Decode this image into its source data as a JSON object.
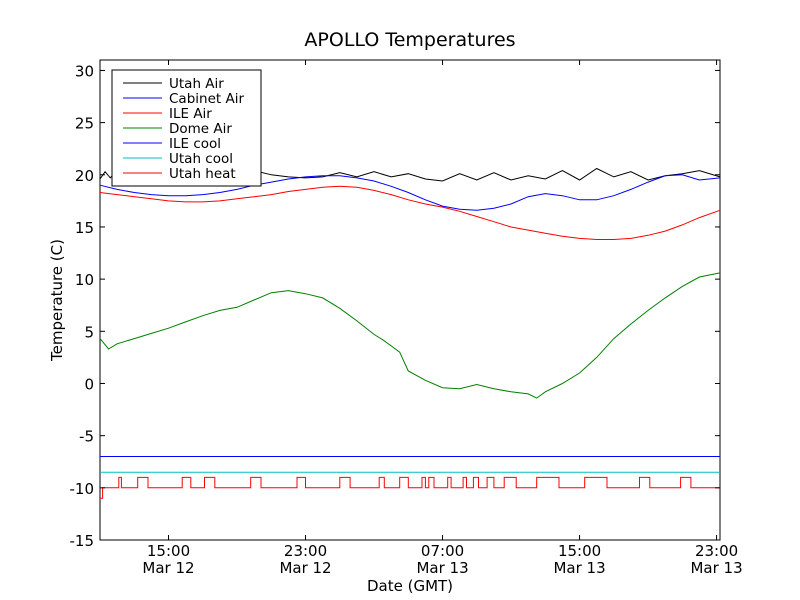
{
  "chart_data": {
    "type": "line",
    "title": "APOLLO Temperatures",
    "xlabel": "Date (GMT)",
    "ylabel": "Temperature (C)",
    "xlim": [
      11.0,
      47.2
    ],
    "ylim": [
      -15,
      31
    ],
    "yticks": [
      -15,
      -10,
      -5,
      0,
      5,
      10,
      15,
      20,
      25,
      30
    ],
    "ytick_labels": [
      "-15",
      "-10",
      "-5",
      "0",
      "5",
      "10",
      "15",
      "20",
      "25",
      "30"
    ],
    "xticks": [
      {
        "x": 15,
        "time": "15:00",
        "date": "Mar 12"
      },
      {
        "x": 23,
        "time": "23:00",
        "date": "Mar 12"
      },
      {
        "x": 31,
        "time": "07:00",
        "date": "Mar 13"
      },
      {
        "x": 39,
        "time": "15:00",
        "date": "Mar 13"
      },
      {
        "x": 47,
        "time": "23:00",
        "date": "Mar 13"
      }
    ],
    "grid": false,
    "legend_position": "upper-left",
    "series": [
      {
        "name": "Utah Air",
        "color": "#000000",
        "x": [
          11.0,
          11.3,
          11.6,
          12.0,
          12.5,
          13.0,
          13.5,
          14.0,
          15.0,
          16.0,
          17.0,
          18.0,
          19.0,
          20.0,
          21.0,
          22.0,
          23.0,
          24.0,
          25.0,
          26.0,
          27.0,
          28.0,
          29.0,
          30.0,
          31.0,
          32.0,
          33.0,
          34.0,
          35.0,
          36.0,
          37.0,
          38.0,
          39.0,
          40.0,
          41.0,
          42.0,
          43.0,
          44.0,
          45.0,
          46.0,
          47.2
        ],
        "y": [
          19.6,
          20.3,
          19.7,
          20.5,
          19.8,
          20.2,
          19.9,
          20.4,
          19.8,
          20.3,
          19.9,
          20.2,
          19.8,
          20.4,
          20.0,
          19.8,
          19.7,
          19.8,
          20.2,
          19.8,
          20.3,
          19.8,
          20.1,
          19.6,
          19.4,
          20.1,
          19.5,
          20.2,
          19.5,
          19.9,
          19.6,
          20.4,
          19.5,
          20.6,
          19.8,
          20.3,
          19.5,
          19.9,
          20.1,
          20.4,
          19.8
        ]
      },
      {
        "name": "Cabinet Air",
        "color": "#0000ff",
        "x": [
          11.0,
          12.0,
          13.0,
          14.0,
          15.0,
          16.0,
          17.0,
          18.0,
          19.0,
          20.0,
          21.0,
          22.0,
          23.0,
          24.0,
          25.0,
          26.0,
          27.0,
          28.0,
          29.0,
          30.0,
          31.0,
          32.0,
          33.0,
          34.0,
          35.0,
          36.0,
          37.0,
          38.0,
          39.0,
          40.0,
          41.0,
          42.0,
          43.0,
          44.0,
          45.0,
          46.0,
          47.2
        ],
        "y": [
          19.0,
          18.6,
          18.3,
          18.1,
          18.0,
          18.0,
          18.1,
          18.3,
          18.6,
          19.0,
          19.3,
          19.6,
          19.8,
          19.9,
          19.9,
          19.7,
          19.4,
          18.9,
          18.3,
          17.6,
          17.0,
          16.7,
          16.6,
          16.8,
          17.2,
          17.9,
          18.2,
          18.0,
          17.6,
          17.6,
          18.0,
          18.6,
          19.3,
          19.9,
          20.0,
          19.5,
          19.7
        ]
      },
      {
        "name": "ILE Air",
        "color": "#ff0000",
        "x": [
          11.0,
          12.0,
          13.0,
          14.0,
          15.0,
          16.0,
          17.0,
          18.0,
          19.0,
          20.0,
          21.0,
          22.0,
          23.0,
          24.0,
          25.0,
          26.0,
          27.0,
          28.0,
          29.0,
          30.0,
          31.0,
          32.0,
          33.0,
          34.0,
          35.0,
          36.0,
          37.0,
          38.0,
          39.0,
          40.0,
          41.0,
          42.0,
          43.0,
          44.0,
          45.0,
          46.0,
          47.2
        ],
        "y": [
          18.3,
          18.1,
          17.9,
          17.7,
          17.5,
          17.4,
          17.4,
          17.5,
          17.7,
          17.9,
          18.1,
          18.4,
          18.6,
          18.8,
          18.9,
          18.8,
          18.5,
          18.1,
          17.6,
          17.2,
          16.9,
          16.5,
          16.0,
          15.5,
          15.0,
          14.7,
          14.4,
          14.1,
          13.9,
          13.8,
          13.8,
          13.9,
          14.2,
          14.6,
          15.2,
          15.9,
          16.6
        ]
      },
      {
        "name": "Dome Air",
        "color": "#008000",
        "x": [
          11.0,
          11.5,
          12.0,
          13.0,
          14.0,
          15.0,
          16.0,
          17.0,
          18.0,
          19.0,
          20.0,
          21.0,
          22.0,
          23.0,
          24.0,
          25.0,
          26.0,
          27.0,
          27.5,
          28.0,
          28.5,
          29.0,
          30.0,
          31.0,
          32.0,
          33.0,
          34.0,
          35.0,
          36.0,
          36.5,
          37.0,
          38.0,
          39.0,
          40.0,
          41.0,
          42.0,
          43.0,
          44.0,
          45.0,
          46.0,
          47.2
        ],
        "y": [
          4.3,
          3.3,
          3.8,
          4.3,
          4.8,
          5.3,
          5.9,
          6.5,
          7.0,
          7.3,
          8.0,
          8.7,
          8.9,
          8.6,
          8.2,
          7.2,
          6.0,
          4.7,
          4.2,
          3.6,
          3.0,
          1.2,
          0.3,
          -0.4,
          -0.5,
          -0.1,
          -0.5,
          -0.8,
          -1.0,
          -1.4,
          -0.8,
          0.0,
          1.0,
          2.5,
          4.3,
          5.7,
          7.0,
          8.2,
          9.3,
          10.2,
          10.6
        ]
      },
      {
        "name": "ILE cool",
        "color": "#0000ff",
        "x": [
          11.0,
          47.2
        ],
        "y": [
          -7.0,
          -7.0
        ]
      },
      {
        "name": "Utah cool",
        "color": "#00bfbf",
        "x": [
          11.0,
          47.2
        ],
        "y": [
          -8.5,
          -8.5
        ]
      },
      {
        "name": "Utah heat",
        "color": "#ff0000",
        "x": [
          11.0,
          11.15,
          11.15,
          12.1,
          12.1,
          12.25,
          12.25,
          13.2,
          13.2,
          13.8,
          13.8,
          15.8,
          15.8,
          16.3,
          16.3,
          17.1,
          17.1,
          17.7,
          17.7,
          19.8,
          19.8,
          20.4,
          20.4,
          22.5,
          22.5,
          23.0,
          23.0,
          25.0,
          25.0,
          25.6,
          25.6,
          27.3,
          27.3,
          27.6,
          27.6,
          28.5,
          28.5,
          29.0,
          29.0,
          29.8,
          29.8,
          30.0,
          30.0,
          30.2,
          30.2,
          30.5,
          30.5,
          31.3,
          31.3,
          31.5,
          31.5,
          32.2,
          32.2,
          32.4,
          32.4,
          32.8,
          32.8,
          33.1,
          33.1,
          33.6,
          33.6,
          34.0,
          34.0,
          34.6,
          34.6,
          35.3,
          35.3,
          36.5,
          36.5,
          37.8,
          37.8,
          39.3,
          39.3,
          40.6,
          40.6,
          42.5,
          42.5,
          43.1,
          43.1,
          44.9,
          44.9,
          45.5,
          45.5,
          47.2
        ],
        "y": [
          -11.0,
          -11.0,
          -10.0,
          -10.0,
          -9.0,
          -9.0,
          -10.0,
          -10.0,
          -9.0,
          -9.0,
          -10.0,
          -10.0,
          -9.0,
          -9.0,
          -10.0,
          -10.0,
          -9.0,
          -9.0,
          -10.0,
          -10.0,
          -9.0,
          -9.0,
          -10.0,
          -10.0,
          -9.0,
          -9.0,
          -10.0,
          -10.0,
          -9.0,
          -9.0,
          -10.0,
          -10.0,
          -9.0,
          -9.0,
          -10.0,
          -10.0,
          -9.0,
          -9.0,
          -10.0,
          -10.0,
          -9.0,
          -9.0,
          -10.0,
          -10.0,
          -9.0,
          -9.0,
          -10.0,
          -10.0,
          -9.0,
          -9.0,
          -10.0,
          -10.0,
          -9.0,
          -9.0,
          -10.0,
          -10.0,
          -9.0,
          -9.0,
          -10.0,
          -10.0,
          -9.0,
          -9.0,
          -10.0,
          -10.0,
          -9.0,
          -9.0,
          -10.0,
          -10.0,
          -9.0,
          -9.0,
          -10.0,
          -10.0,
          -9.0,
          -9.0,
          -10.0,
          -10.0,
          -9.0,
          -9.0,
          -10.0,
          -10.0,
          -9.0,
          -9.0,
          -10.0,
          -10.0
        ]
      }
    ]
  }
}
